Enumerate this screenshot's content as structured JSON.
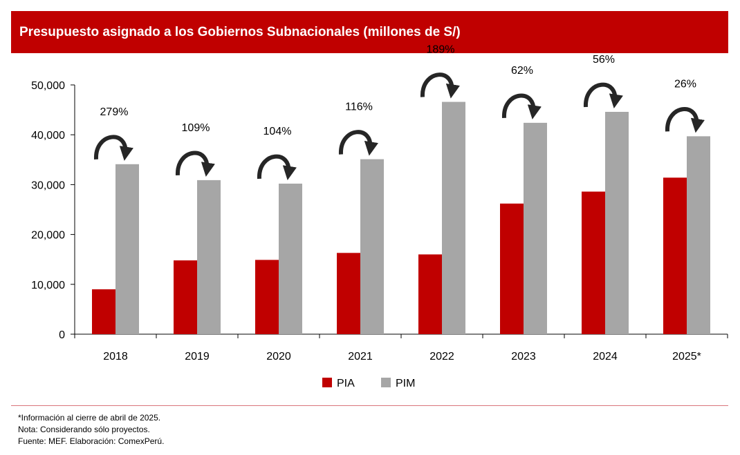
{
  "header": {
    "title": "Presupuesto asignado a los Gobiernos Subnacionales (millones de S/)"
  },
  "chart_data": {
    "type": "bar",
    "categories": [
      "2018",
      "2019",
      "2020",
      "2021",
      "2022",
      "2023",
      "2024",
      "2025*"
    ],
    "series": [
      {
        "name": "PIA",
        "color": "#c00000",
        "values": [
          9000,
          14800,
          14900,
          16300,
          16000,
          26200,
          28600,
          31400
        ]
      },
      {
        "name": "PIM",
        "color": "#a6a6a6",
        "values": [
          34100,
          30900,
          30200,
          35100,
          46600,
          42400,
          44600,
          39700
        ]
      }
    ],
    "annotations": [
      "279%",
      "109%",
      "104%",
      "116%",
      "189%",
      "62%",
      "56%",
      "26%"
    ],
    "yticks": [
      "0",
      "10,000",
      "20,000",
      "30,000",
      "40,000",
      "50,000"
    ],
    "ylim": [
      0,
      50000
    ],
    "legend_position": "bottom",
    "grid": false
  },
  "footnotes": [
    "*Información al cierre de abril de 2025.",
    "Nota: Considerando sólo proyectos.",
    "Fuente: MEF. Elaboración: ComexPerú."
  ]
}
